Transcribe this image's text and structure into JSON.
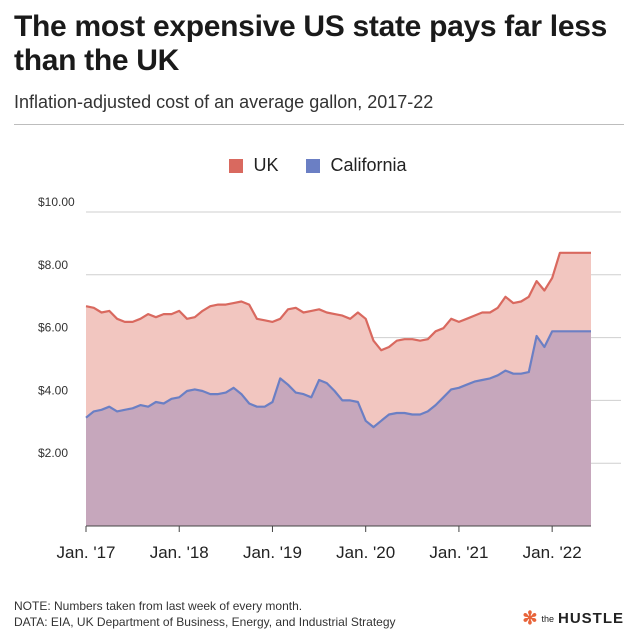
{
  "title": "The most expensive US state pays far less than the UK",
  "subtitle": "Inflation-adjusted cost of an average gallon, 2017-22",
  "note_lines": [
    "NOTE: Numbers taken from last week of every month.",
    "DATA: EIA, UK Department of Business, Energy, and Industrial Strategy"
  ],
  "logo": {
    "small": "the",
    "big": "HUSTLE",
    "mark": "sprocket-icon"
  },
  "colors": {
    "uk_line": "#d9695f",
    "uk_fill": "#f2c6c0",
    "ca_line": "#6b7fc4",
    "ca_fill": "#c6a7bc",
    "grid": "#cfcfcf"
  },
  "legend": [
    {
      "name": "UK",
      "color": "#d9695f"
    },
    {
      "name": "California",
      "color": "#6b7fc4"
    }
  ],
  "chart_data": {
    "type": "area",
    "y_ticks": [
      "$2.00",
      "$4.00",
      "$6.00",
      "$8.00",
      "$10.00"
    ],
    "y_tick_values": [
      2,
      4,
      6,
      8,
      10
    ],
    "ylim": [
      0,
      10
    ],
    "x_tick_labels": [
      "Jan. '17",
      "Jan. '18",
      "Jan. '19",
      "Jan. '20",
      "Jan. '21",
      "Jan. '22"
    ],
    "xlim": [
      "2017-01",
      "2022-06"
    ],
    "grid": true,
    "legend_position": "top",
    "x": [
      "2017-01",
      "2017-02",
      "2017-03",
      "2017-04",
      "2017-05",
      "2017-06",
      "2017-07",
      "2017-08",
      "2017-09",
      "2017-10",
      "2017-11",
      "2017-12",
      "2018-01",
      "2018-02",
      "2018-03",
      "2018-04",
      "2018-05",
      "2018-06",
      "2018-07",
      "2018-08",
      "2018-09",
      "2018-10",
      "2018-11",
      "2018-12",
      "2019-01",
      "2019-02",
      "2019-03",
      "2019-04",
      "2019-05",
      "2019-06",
      "2019-07",
      "2019-08",
      "2019-09",
      "2019-10",
      "2019-11",
      "2019-12",
      "2020-01",
      "2020-02",
      "2020-03",
      "2020-04",
      "2020-05",
      "2020-06",
      "2020-07",
      "2020-08",
      "2020-09",
      "2020-10",
      "2020-11",
      "2020-12",
      "2021-01",
      "2021-02",
      "2021-03",
      "2021-04",
      "2021-05",
      "2021-06",
      "2021-07",
      "2021-08",
      "2021-09",
      "2021-10",
      "2021-11",
      "2021-12",
      "2022-01",
      "2022-02",
      "2022-03",
      "2022-04",
      "2022-05",
      "2022-06"
    ],
    "series": [
      {
        "name": "UK",
        "values": [
          7.0,
          6.95,
          6.8,
          6.85,
          6.6,
          6.5,
          6.5,
          6.6,
          6.75,
          6.65,
          6.75,
          6.75,
          6.85,
          6.6,
          6.65,
          6.85,
          7.0,
          7.05,
          7.05,
          7.1,
          7.15,
          7.05,
          6.6,
          6.55,
          6.5,
          6.6,
          6.9,
          6.95,
          6.8,
          6.85,
          6.9,
          6.8,
          6.75,
          6.7,
          6.6,
          6.8,
          6.6,
          5.9,
          5.6,
          5.7,
          5.9,
          5.95,
          5.95,
          5.9,
          5.95,
          6.2,
          6.3,
          6.6,
          6.5,
          6.6,
          6.7,
          6.8,
          6.8,
          6.95,
          7.3,
          7.1,
          7.15,
          7.3,
          7.8,
          7.5,
          7.9,
          8.7,
          8.7,
          8.7,
          8.7,
          8.7
        ]
      },
      {
        "name": "California",
        "values": [
          3.45,
          3.65,
          3.7,
          3.8,
          3.65,
          3.7,
          3.75,
          3.85,
          3.8,
          3.95,
          3.9,
          4.05,
          4.1,
          4.3,
          4.35,
          4.3,
          4.2,
          4.2,
          4.25,
          4.4,
          4.2,
          3.9,
          3.8,
          3.8,
          3.95,
          4.7,
          4.5,
          4.25,
          4.2,
          4.1,
          4.65,
          4.55,
          4.3,
          4.0,
          4.0,
          3.95,
          3.35,
          3.15,
          3.35,
          3.55,
          3.6,
          3.6,
          3.55,
          3.55,
          3.65,
          3.85,
          4.1,
          4.35,
          4.4,
          4.5,
          4.6,
          4.65,
          4.7,
          4.8,
          4.95,
          4.85,
          4.85,
          4.9,
          6.05,
          5.7,
          6.2,
          6.2,
          6.2,
          6.2,
          6.2,
          6.2
        ]
      }
    ]
  }
}
